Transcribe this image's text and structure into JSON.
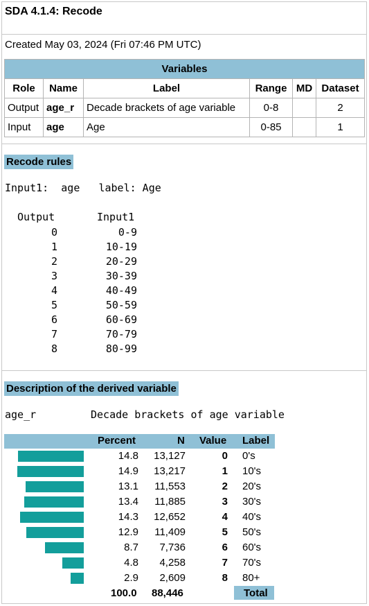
{
  "title": "SDA 4.1.4: Recode",
  "created": "Created May 03, 2024 (Fri 07:46 PM UTC)",
  "variables": {
    "caption": "Variables",
    "headers": [
      "Role",
      "Name",
      "Label",
      "Range",
      "MD",
      "Dataset"
    ],
    "rows": [
      {
        "role": "Output",
        "name": "age_r",
        "label": "Decade brackets of age variable",
        "range": "0-8",
        "md": "",
        "dataset": "2"
      },
      {
        "role": "Input",
        "name": "age",
        "label": "Age",
        "range": "0-85",
        "md": "",
        "dataset": "1"
      }
    ]
  },
  "recode": {
    "heading": "Recode rules",
    "input_line": "Input1:  age   label: Age",
    "col_output": "Output",
    "col_input": "Input1",
    "rules": [
      {
        "out": "0",
        "in": "0-9"
      },
      {
        "out": "1",
        "in": "10-19"
      },
      {
        "out": "2",
        "in": "20-29"
      },
      {
        "out": "3",
        "in": "30-39"
      },
      {
        "out": "4",
        "in": "40-49"
      },
      {
        "out": "5",
        "in": "50-59"
      },
      {
        "out": "6",
        "in": "60-69"
      },
      {
        "out": "7",
        "in": "70-79"
      },
      {
        "out": "8",
        "in": "80-99"
      }
    ]
  },
  "derived": {
    "heading": "Description of the derived variable",
    "varname": "age_r",
    "varlabel": "Decade brackets of age variable",
    "headers": {
      "percent": "Percent",
      "n": "N",
      "value": "Value",
      "label": "Label"
    },
    "bar_color": "#139e9b",
    "rows": [
      {
        "percent": "14.8",
        "n": "13,127",
        "value": "0",
        "label": "0's"
      },
      {
        "percent": "14.9",
        "n": "13,217",
        "value": "1",
        "label": "10's"
      },
      {
        "percent": "13.1",
        "n": "11,553",
        "value": "2",
        "label": "20's"
      },
      {
        "percent": "13.4",
        "n": "11,885",
        "value": "3",
        "label": "30's"
      },
      {
        "percent": "14.3",
        "n": "12,652",
        "value": "4",
        "label": "40's"
      },
      {
        "percent": "12.9",
        "n": "11,409",
        "value": "5",
        "label": "50's"
      },
      {
        "percent": "8.7",
        "n": "7,736",
        "value": "6",
        "label": "60's"
      },
      {
        "percent": "4.8",
        "n": "4,258",
        "value": "7",
        "label": "70's"
      },
      {
        "percent": "2.9",
        "n": "2,609",
        "value": "8",
        "label": "80+"
      }
    ],
    "total": {
      "percent": "100.0",
      "n": "88,446",
      "label": "Total"
    }
  },
  "accent": "#8fc0d6"
}
